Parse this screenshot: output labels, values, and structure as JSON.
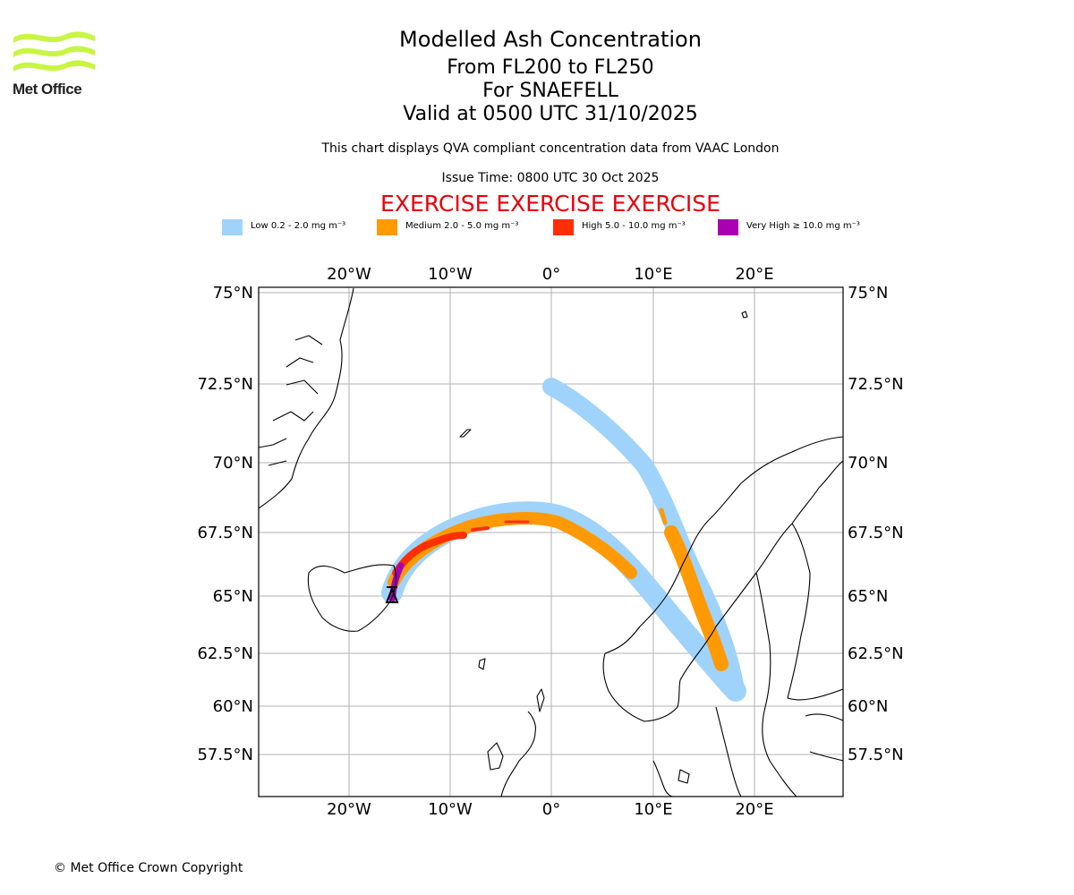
{
  "logo": {
    "text": "Met Office",
    "color": "#c8f542"
  },
  "title": "Modelled Ash Concentration",
  "subtitle_lines": [
    "From FL200 to FL250",
    "For SNAEFELL",
    "Valid at 0500 UTC 31/10/2025"
  ],
  "description": "This chart displays QVA compliant concentration data from VAAC London",
  "issue_time": "Issue Time: 0800 UTC 30 Oct 2025",
  "exercise_banner": "EXERCISE EXERCISE EXERCISE",
  "legend": [
    {
      "label": "Low 0.2 - 2.0 mg m⁻³",
      "color": "#9fd3fb"
    },
    {
      "label": "Medium 2.0 - 5.0 mg m⁻³",
      "color": "#ff9a05"
    },
    {
      "label": "High 5.0 - 10.0 mg m⁻³",
      "color": "#ff2e05"
    },
    {
      "label": "Very High  ≥  10.0 mg m⁻³",
      "color": "#a900b4"
    }
  ],
  "map": {
    "lon_ticks": [
      "20°W",
      "10°W",
      "0°",
      "10°E",
      "20°E"
    ],
    "lat_ticks": [
      "75°N",
      "72.5°N",
      "70°N",
      "67.5°N",
      "65°N",
      "62.5°N",
      "60°N",
      "57.5°N"
    ],
    "volcano": "SNAEFELL"
  },
  "copyright": "© Met Office Crown Copyright"
}
